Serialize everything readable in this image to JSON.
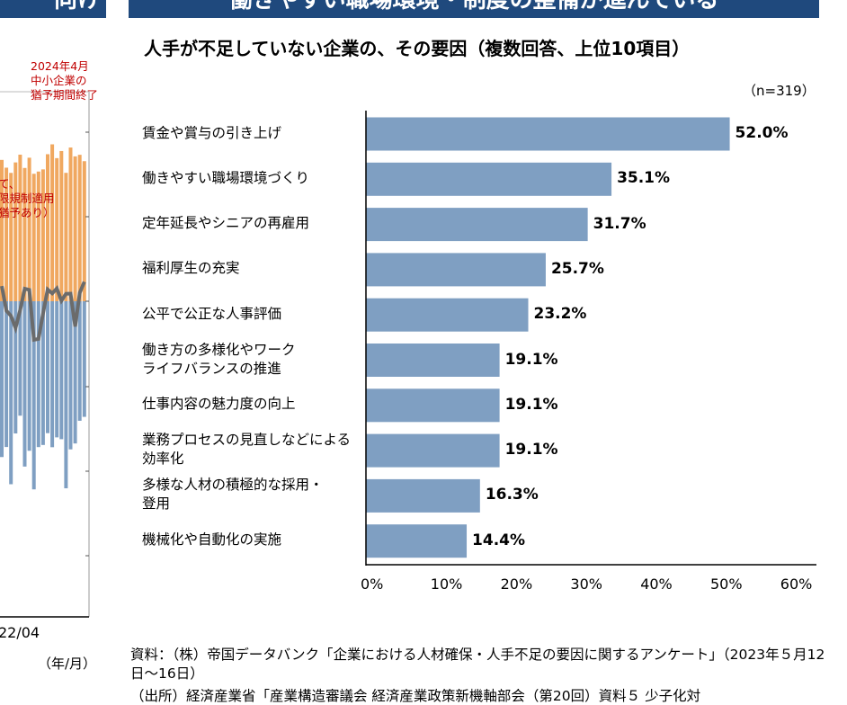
{
  "left_panel": {
    "banner_text": "向け",
    "annotation_2024": "2024年4月\n中小企業の\n猶予期間終了",
    "annotation_cut": "て、\n限規制適用\n猶予あり）",
    "x_tick": "22/04",
    "x_unit": "（年/月）",
    "colors": {
      "upper_bars": "#f0a860",
      "lower_bars": "#7f9fc2",
      "line": "#6b6b6b"
    }
  },
  "right_panel": {
    "banner_text": "働きやすい職場環境・制度の整備が進んでいる",
    "source": "資料：（株）帝国データバンク「企業における人材確保・人手不足の要因に関するアンケート」（2023年５月12日～16日）",
    "source_cut": "（出所）経済産業省「産業構造審議会 経済産業政策新機軸部会（第20回）資料５ 少子化対"
  },
  "chart_data": {
    "type": "bar",
    "orientation": "horizontal",
    "title": "人手が不足していない企業の、その要因（複数回答、上位10項目）",
    "note": "（n=319）",
    "categories": [
      "賃金や賞与の引き上げ",
      "働きやすい職場環境づくり",
      "定年延長やシニアの再雇用",
      "福利厚生の充実",
      "公平で公正な人事評価",
      "働き方の多様化やワーク\nライフバランスの推進",
      "仕事内容の魅力度の向上",
      "業務プロセスの見直しなどによる\n効率化",
      "多様な人材の積極的な採用・\n登用",
      "機械化や自動化の実施"
    ],
    "values": [
      52.0,
      35.1,
      31.7,
      25.7,
      23.2,
      19.1,
      19.1,
      19.1,
      16.3,
      14.4
    ],
    "value_labels": [
      "52.0%",
      "35.1%",
      "31.7%",
      "25.7%",
      "23.2%",
      "19.1%",
      "19.1%",
      "19.1%",
      "16.3%",
      "14.4%"
    ],
    "x_ticks": [
      "0%",
      "10%",
      "20%",
      "30%",
      "40%",
      "50%",
      "60%"
    ],
    "xlim": [
      0,
      60
    ],
    "grid": false,
    "bar_color": "#7f9fc2"
  }
}
